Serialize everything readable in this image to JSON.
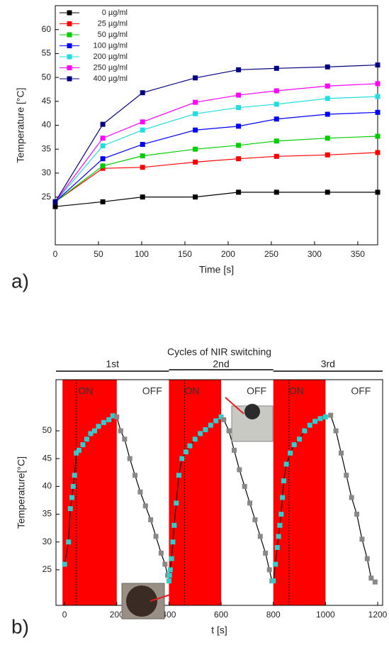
{
  "chart_data": [
    {
      "type": "line",
      "panel": "a)",
      "x_label": "Time [s]",
      "y_label": "Temperature [°C]",
      "x": [
        0,
        55,
        101,
        162,
        212,
        256,
        315,
        373
      ],
      "series": [
        {
          "name": "0 µg/ml",
          "color": "#000000",
          "values": [
            23,
            24,
            25,
            25,
            26,
            26,
            26,
            26
          ]
        },
        {
          "name": "25 µg/ml",
          "color": "#ff0000",
          "values": [
            24,
            31,
            31.2,
            32.3,
            33,
            33.5,
            33.8,
            34.3
          ]
        },
        {
          "name": "50 µg/ml",
          "color": "#00cc00",
          "values": [
            24,
            31.5,
            33.6,
            35,
            35.8,
            36.7,
            37.3,
            37.7
          ]
        },
        {
          "name": "100 µg/ml",
          "color": "#0000ff",
          "values": [
            24,
            33,
            36,
            39,
            39.8,
            41.3,
            42.3,
            42.7
          ]
        },
        {
          "name": "200 µg/ml",
          "color": "#22dddd",
          "values": [
            24,
            35.7,
            39,
            42.4,
            43.7,
            44.4,
            45.6,
            46
          ]
        },
        {
          "name": "250 µg/ml",
          "color": "#ff00ff",
          "values": [
            24,
            37.3,
            40.7,
            44.8,
            46.3,
            47.2,
            48.2,
            48.7
          ]
        },
        {
          "name": "400 µg/ml",
          "color": "#000080",
          "values": [
            24,
            40.2,
            46.8,
            49.9,
            51.6,
            51.9,
            52.2,
            52.6
          ]
        }
      ],
      "xlim": [
        0,
        373
      ],
      "ylim": [
        15,
        65
      ],
      "xticks": [
        0,
        50,
        100,
        150,
        200,
        250,
        300,
        350
      ],
      "yticks": [
        25,
        30,
        35,
        40,
        45,
        50,
        55,
        60
      ],
      "legend": "upper left"
    },
    {
      "type": "line",
      "panel": "b)",
      "title": "Cycles of NIR switching",
      "x_label": "t [s]",
      "y_label": "Temperature[°C]",
      "line_color": "#000000",
      "series": [
        {
          "color": "#33cccc",
          "x": [
            0,
            15,
            22,
            28,
            33,
            38,
            45,
            55,
            70,
            85,
            100,
            115,
            130,
            150,
            170,
            185
          ],
          "values": [
            26,
            30,
            36,
            38,
            40,
            42,
            46,
            46.5,
            47.5,
            48.5,
            49.5,
            50,
            50.8,
            51.5,
            52,
            52.7
          ]
        },
        {
          "color": "#888888",
          "x": [
            200,
            215,
            230,
            250,
            270,
            290,
            310,
            330,
            350,
            370,
            385,
            395
          ],
          "values": [
            52.5,
            50,
            48.5,
            45,
            42,
            39,
            36.5,
            34,
            31,
            28,
            26,
            24
          ]
        },
        {
          "color": "#33cccc",
          "x": [
            400,
            402,
            405,
            410,
            415,
            420,
            428,
            438,
            450,
            465,
            480,
            500,
            520,
            540,
            560,
            580,
            600
          ],
          "values": [
            23,
            24,
            25,
            27,
            30,
            33,
            37,
            42,
            45,
            46.2,
            47.3,
            48.5,
            49.5,
            50.2,
            51,
            51.8,
            52.5
          ]
        },
        {
          "color": "#888888",
          "x": [
            610,
            630,
            650,
            670,
            690,
            710,
            730,
            750,
            770,
            785,
            795
          ],
          "values": [
            52,
            50,
            46.5,
            43,
            40,
            37,
            34,
            31,
            28,
            25,
            23
          ]
        },
        {
          "color": "#33cccc",
          "x": [
            800,
            808,
            815,
            820,
            825,
            830,
            835,
            840,
            850,
            865,
            880,
            900,
            920,
            940,
            960,
            980,
            1000
          ],
          "values": [
            23,
            26,
            29,
            31,
            33,
            35,
            38,
            41,
            44,
            46,
            47.5,
            48.5,
            50,
            51,
            51.7,
            52.2,
            52.5
          ]
        },
        {
          "color": "#888888",
          "x": [
            1020,
            1040,
            1060,
            1080,
            1100,
            1120,
            1140,
            1160,
            1175,
            1190
          ],
          "values": [
            52.8,
            50,
            46,
            42,
            38,
            35,
            30.5,
            27,
            23.5,
            22.8
          ]
        }
      ],
      "phases": [
        {
          "label": "ON",
          "range": [
            -8,
            200
          ],
          "color": "#ff0000"
        },
        {
          "label": "OFF",
          "range": [
            200,
            400
          ]
        },
        {
          "label": "ON",
          "range": [
            400,
            600
          ],
          "color": "#ff0000"
        },
        {
          "label": "OFF",
          "range": [
            600,
            800
          ]
        },
        {
          "label": "ON",
          "range": [
            800,
            1000
          ],
          "color": "#ff0000"
        },
        {
          "label": "OFF",
          "range": [
            1000,
            1219
          ]
        }
      ],
      "vlines": [
        45,
        460,
        860
      ],
      "cycles": [
        {
          "label": "1st",
          "range": [
            -33,
            400
          ]
        },
        {
          "label": "2nd",
          "range": [
            400,
            800
          ]
        },
        {
          "label": "3rd",
          "range": [
            800,
            1219
          ]
        }
      ],
      "xlim": [
        -33,
        1219
      ],
      "ylim": [
        18.6,
        59.2
      ],
      "xticks": [
        0,
        200,
        400,
        600,
        800,
        1000,
        1200
      ],
      "yticks": [
        25,
        30,
        35,
        40,
        45,
        50
      ]
    }
  ]
}
